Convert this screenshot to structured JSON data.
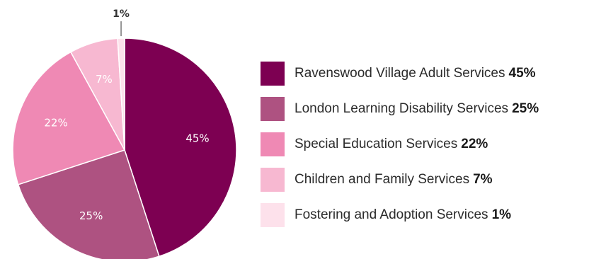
{
  "chart_data": {
    "type": "pie",
    "title": "",
    "slices": [
      {
        "label": "Ravenswood Village Adult Services",
        "value": 45,
        "display": "45%",
        "color": "#7d0052"
      },
      {
        "label": "London Learning Disability Services",
        "value": 25,
        "display": "25%",
        "color": "#ae5281"
      },
      {
        "label": "Special Education Services",
        "value": 22,
        "display": "22%",
        "color": "#ef89b4"
      },
      {
        "label": "Children and Family Services",
        "value": 7,
        "display": "7%",
        "color": "#f7b8d1"
      },
      {
        "label": "Fostering and Adoption Services",
        "value": 1,
        "display": "1%",
        "color": "#fde1eb"
      }
    ],
    "legend_position": "right"
  }
}
